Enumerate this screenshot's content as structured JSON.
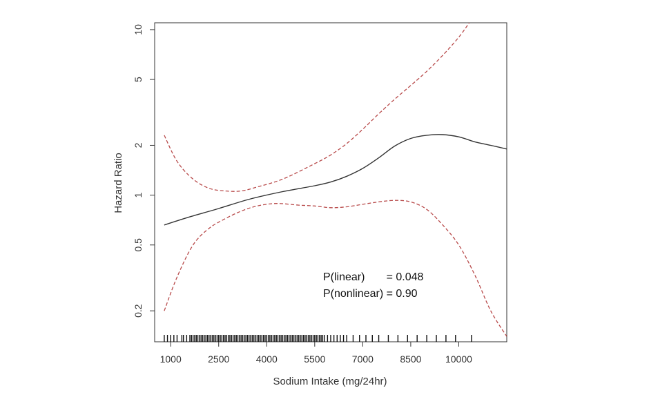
{
  "chart_data": {
    "type": "line",
    "title": "",
    "xlabel": "Sodium Intake (mg/24hr)",
    "ylabel": "Hazard Ratio",
    "xlim": [
      500,
      11500
    ],
    "ylim": [
      0.13,
      11
    ],
    "y_scale": "log",
    "x_ticks": [
      1000,
      2500,
      4000,
      5500,
      7000,
      8500,
      10000
    ],
    "y_ticks": [
      0.2,
      0.5,
      1,
      2,
      5,
      10
    ],
    "grid": false,
    "colors": {
      "estimate": "#333333",
      "ci": "#b84a4a"
    },
    "series": [
      {
        "style": "solid",
        "x": [
          800,
          1500,
          2500,
          3500,
          4500,
          5500,
          6000,
          6500,
          7000,
          7500,
          8000,
          8500,
          9000,
          9500,
          10000,
          10500,
          11000,
          11500
        ],
        "y": [
          0.66,
          0.73,
          0.83,
          0.95,
          1.05,
          1.14,
          1.2,
          1.3,
          1.45,
          1.68,
          1.98,
          2.2,
          2.3,
          2.32,
          2.25,
          2.1,
          2.0,
          1.9
        ]
      },
      {
        "style": "dashed",
        "x": [
          800,
          1200,
          1700,
          2200,
          2700,
          3200,
          3700,
          4500,
          5500,
          6000,
          6500,
          7000,
          7500,
          8000,
          8500,
          9000,
          9500,
          10000,
          10400
        ],
        "y": [
          2.3,
          1.6,
          1.25,
          1.1,
          1.06,
          1.06,
          1.12,
          1.25,
          1.55,
          1.75,
          2.05,
          2.5,
          3.1,
          3.8,
          4.6,
          5.6,
          7.0,
          9.0,
          11.5
        ]
      },
      {
        "style": "dashed",
        "x": [
          800,
          1200,
          1700,
          2200,
          2700,
          3200,
          3700,
          4300,
          5000,
          5500,
          6000,
          6500,
          7000,
          7500,
          8000,
          8500,
          9000,
          9500,
          10000,
          10500,
          11000,
          11500
        ],
        "y": [
          0.2,
          0.32,
          0.5,
          0.63,
          0.72,
          0.8,
          0.86,
          0.89,
          0.87,
          0.86,
          0.84,
          0.85,
          0.88,
          0.91,
          0.93,
          0.91,
          0.82,
          0.66,
          0.5,
          0.33,
          0.2,
          0.14
        ]
      }
    ],
    "rug_x": [
      800,
      900,
      1000,
      1100,
      1200,
      1350,
      1400,
      1500,
      1600,
      1650,
      1700,
      1750,
      1800,
      1850,
      1900,
      1950,
      2000,
      2050,
      2100,
      2150,
      2200,
      2250,
      2300,
      2350,
      2400,
      2450,
      2500,
      2550,
      2600,
      2650,
      2700,
      2750,
      2800,
      2850,
      2900,
      2950,
      3000,
      3050,
      3100,
      3150,
      3200,
      3250,
      3300,
      3350,
      3400,
      3450,
      3500,
      3550,
      3600,
      3650,
      3700,
      3750,
      3800,
      3850,
      3900,
      3950,
      4000,
      4050,
      4100,
      4150,
      4200,
      4250,
      4300,
      4350,
      4400,
      4450,
      4500,
      4550,
      4600,
      4650,
      4700,
      4750,
      4800,
      4850,
      4900,
      4950,
      5000,
      5050,
      5100,
      5150,
      5200,
      5250,
      5300,
      5350,
      5400,
      5450,
      5500,
      5550,
      5600,
      5650,
      5700,
      5750,
      5800,
      5900,
      6000,
      6100,
      6200,
      6300,
      6400,
      6500,
      6700,
      6900,
      7100,
      7300,
      7500,
      7800,
      8100,
      8400,
      8700,
      9000,
      9300,
      9600,
      9900,
      10400
    ],
    "annotations": [
      "P(linear)       = 0.048",
      "P(nonlinear) = 0.90"
    ]
  }
}
